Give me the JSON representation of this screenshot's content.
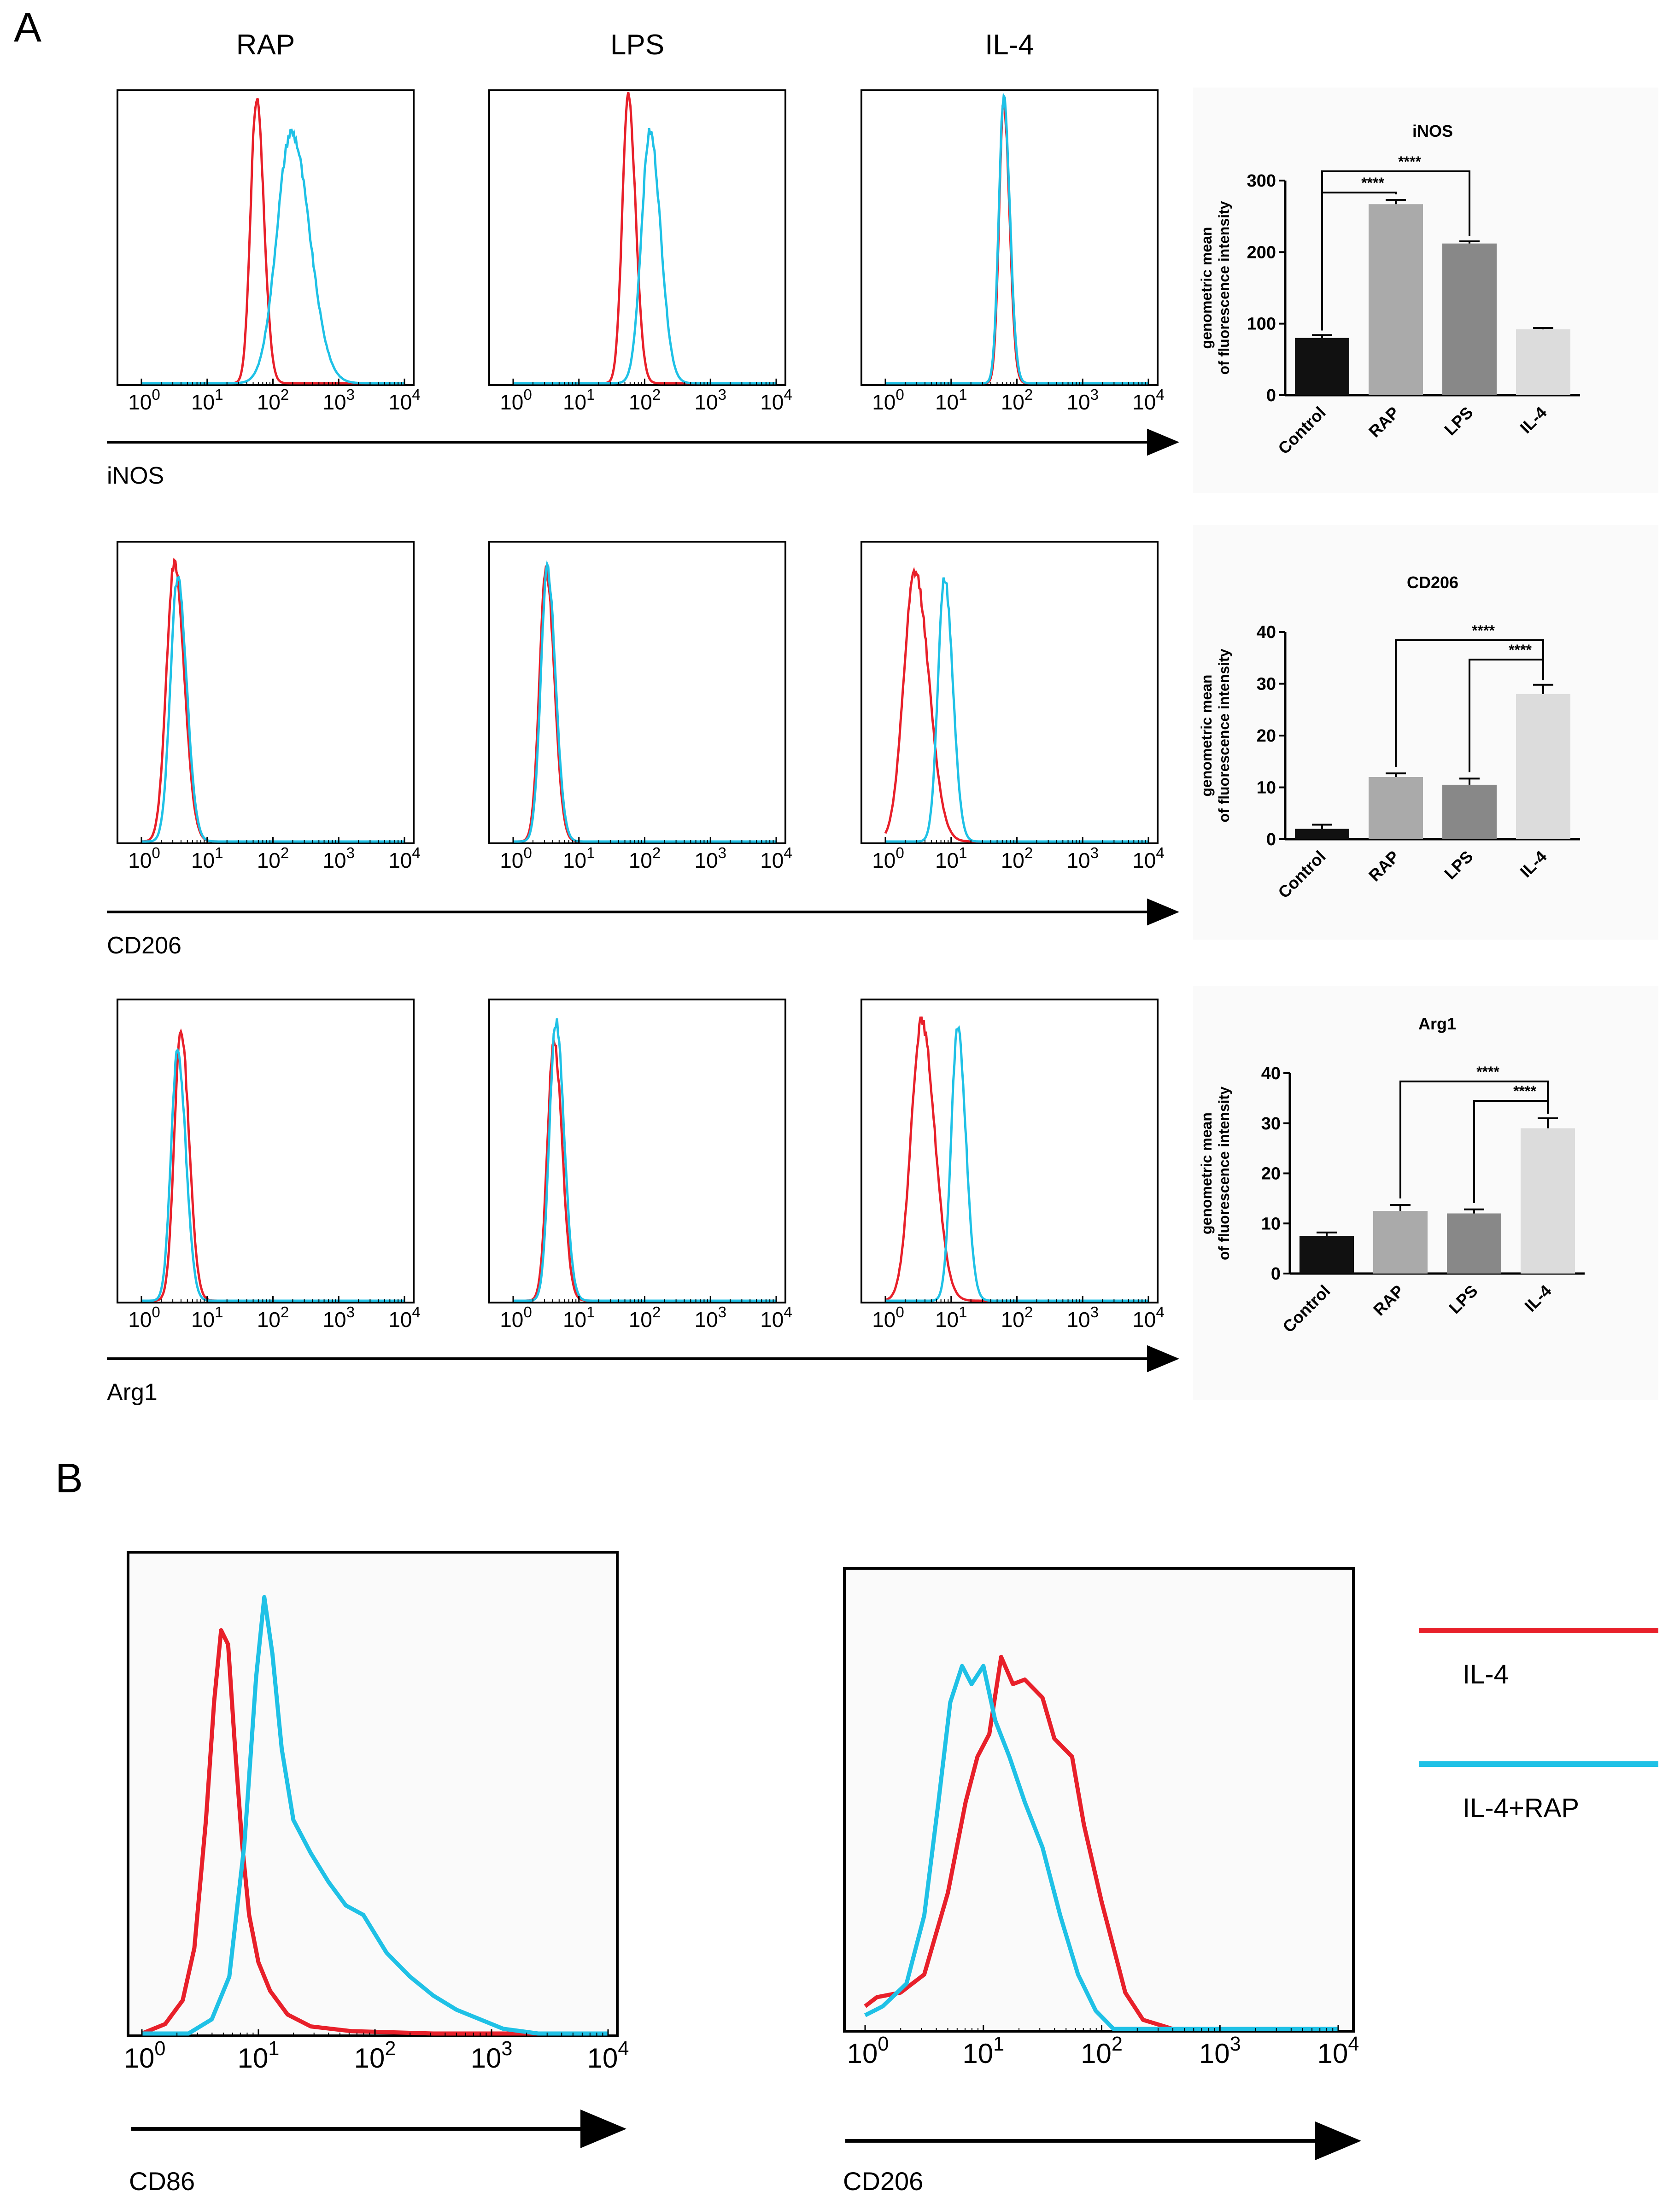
{
  "colors": {
    "red": "#e8202a",
    "cyan": "#1fc1e6",
    "bar_control": "#111111",
    "bar_rap": "#aaaaaa",
    "bar_lps": "#888888",
    "bar_il4": "#dcdcdc",
    "panel_bg": "#fafafa"
  },
  "panel_a": {
    "letter": "A",
    "conditions": [
      "RAP",
      "LPS",
      "IL-4"
    ],
    "rows": [
      {
        "marker": "iNOS",
        "histograms": [
          {
            "red": {
              "peak_log": 1.75,
              "width": 0.09,
              "height": 1.0
            },
            "cyan": {
              "peak_log": 2.28,
              "width": 0.22,
              "height": 0.88
            }
          },
          {
            "red": {
              "peak_log": 1.75,
              "width": 0.09,
              "height": 1.0
            },
            "cyan": {
              "peak_log": 2.08,
              "width": 0.13,
              "height": 0.88
            }
          },
          {
            "red": {
              "peak_log": 1.8,
              "width": 0.07,
              "height": 0.98
            },
            "cyan": {
              "peak_log": 1.8,
              "width": 0.075,
              "height": 1.0
            }
          }
        ]
      },
      {
        "marker": "CD206",
        "histograms": [
          {
            "red": {
              "peak_log": 0.5,
              "width": 0.12,
              "height": 0.95
            },
            "cyan": {
              "peak_log": 0.55,
              "width": 0.11,
              "height": 0.9
            }
          },
          {
            "red": {
              "peak_log": 0.5,
              "width": 0.1,
              "height": 0.93
            },
            "cyan": {
              "peak_log": 0.52,
              "width": 0.1,
              "height": 0.93
            }
          },
          {
            "red": {
              "peak_log": 0.45,
              "width": 0.17,
              "height": 0.92
            },
            "cyan": {
              "peak_log": 0.9,
              "width": 0.1,
              "height": 0.9
            }
          }
        ]
      },
      {
        "marker": "Arg1",
        "histograms": [
          {
            "red": {
              "peak_log": 0.6,
              "width": 0.1,
              "height": 0.92
            },
            "cyan": {
              "peak_log": 0.55,
              "width": 0.1,
              "height": 0.85
            }
          },
          {
            "red": {
              "peak_log": 0.62,
              "width": 0.1,
              "height": 0.88
            },
            "cyan": {
              "peak_log": 0.65,
              "width": 0.1,
              "height": 0.95
            }
          },
          {
            "red": {
              "peak_log": 0.55,
              "width": 0.16,
              "height": 0.95
            },
            "cyan": {
              "peak_log": 1.1,
              "width": 0.1,
              "height": 0.92
            }
          }
        ]
      }
    ],
    "hist_tick_exponents": [
      "0",
      "1",
      "2",
      "3",
      "4"
    ]
  },
  "chart_data": [
    {
      "type": "bar",
      "title": "iNOS",
      "ylabel": "genometric mean of fluorescence intensity",
      "ylabel_lines": [
        "genometric mean",
        "of fluorescence intensity"
      ],
      "categories": [
        "Control",
        "RAP",
        "LPS",
        "IL-4"
      ],
      "values": [
        80,
        267,
        212,
        92
      ],
      "errors": [
        4,
        6,
        3,
        2
      ],
      "ylim": [
        0,
        300
      ],
      "yticks": [
        "0",
        "100",
        "200",
        "300"
      ],
      "significance": [
        {
          "from": "Control",
          "to": "RAP",
          "label": "****"
        },
        {
          "from": "Control",
          "to": "LPS",
          "label": "****"
        }
      ]
    },
    {
      "type": "bar",
      "title": "CD206",
      "ylabel": "genometric mean of fluorescence intensity",
      "ylabel_lines": [
        "genometric mean",
        "of fluorescence intensity"
      ],
      "categories": [
        "Control",
        "RAP",
        "LPS",
        "IL-4"
      ],
      "values": [
        2,
        12,
        10.5,
        28
      ],
      "errors": [
        0.8,
        0.7,
        1.2,
        1.8
      ],
      "ylim": [
        0,
        40
      ],
      "yticks": [
        "0",
        "10",
        "20",
        "30",
        "40"
      ],
      "significance": [
        {
          "from": "RAP",
          "to": "IL-4",
          "label": "****"
        },
        {
          "from": "LPS",
          "to": "IL-4",
          "label": "****"
        }
      ]
    },
    {
      "type": "bar",
      "title": "Arg1",
      "ylabel": "genometric mean of fluorescence intensity",
      "ylabel_lines": [
        "genometric mean",
        "of fluorescence intensity"
      ],
      "categories": [
        "Control",
        "RAP",
        "LPS",
        "IL-4"
      ],
      "values": [
        7.5,
        12.5,
        12,
        29
      ],
      "errors": [
        0.7,
        1.2,
        0.8,
        2
      ],
      "ylim": [
        0,
        40
      ],
      "yticks": [
        "0",
        "10",
        "20",
        "30",
        "40"
      ],
      "significance": [
        {
          "from": "RAP",
          "to": "IL-4",
          "label": "****"
        },
        {
          "from": "LPS",
          "to": "IL-4",
          "label": "****"
        }
      ]
    }
  ],
  "panel_b": {
    "letter": "B",
    "tick_exponents": [
      "0",
      "1",
      "2",
      "3",
      "4"
    ],
    "plots": [
      {
        "marker": "CD86",
        "red": [
          [
            0.0,
            0.0
          ],
          [
            0.2,
            0.02
          ],
          [
            0.35,
            0.07
          ],
          [
            0.45,
            0.18
          ],
          [
            0.55,
            0.45
          ],
          [
            0.62,
            0.7
          ],
          [
            0.68,
            0.85
          ],
          [
            0.74,
            0.82
          ],
          [
            0.8,
            0.6
          ],
          [
            0.86,
            0.4
          ],
          [
            0.92,
            0.25
          ],
          [
            1.0,
            0.15
          ],
          [
            1.1,
            0.09
          ],
          [
            1.25,
            0.04
          ],
          [
            1.45,
            0.015
          ],
          [
            1.8,
            0.005
          ],
          [
            2.5,
            0.0
          ],
          [
            4.0,
            0.0
          ]
        ],
        "cyan": [
          [
            0.0,
            0.0
          ],
          [
            0.4,
            0.0
          ],
          [
            0.6,
            0.03
          ],
          [
            0.75,
            0.12
          ],
          [
            0.88,
            0.4
          ],
          [
            0.98,
            0.75
          ],
          [
            1.05,
            0.92
          ],
          [
            1.12,
            0.8
          ],
          [
            1.2,
            0.6
          ],
          [
            1.3,
            0.45
          ],
          [
            1.45,
            0.38
          ],
          [
            1.6,
            0.32
          ],
          [
            1.75,
            0.27
          ],
          [
            1.9,
            0.25
          ],
          [
            2.1,
            0.17
          ],
          [
            2.3,
            0.12
          ],
          [
            2.5,
            0.08
          ],
          [
            2.7,
            0.05
          ],
          [
            2.9,
            0.03
          ],
          [
            3.1,
            0.01
          ],
          [
            3.4,
            0.0
          ],
          [
            4.0,
            0.0
          ]
        ]
      },
      {
        "marker": "CD206",
        "red": [
          [
            0.0,
            0.05
          ],
          [
            0.1,
            0.07
          ],
          [
            0.3,
            0.08
          ],
          [
            0.5,
            0.12
          ],
          [
            0.7,
            0.3
          ],
          [
            0.85,
            0.5
          ],
          [
            0.95,
            0.6
          ],
          [
            1.05,
            0.65
          ],
          [
            1.15,
            0.82
          ],
          [
            1.25,
            0.76
          ],
          [
            1.35,
            0.77
          ],
          [
            1.5,
            0.73
          ],
          [
            1.6,
            0.64
          ],
          [
            1.75,
            0.6
          ],
          [
            1.85,
            0.45
          ],
          [
            2.0,
            0.28
          ],
          [
            2.1,
            0.18
          ],
          [
            2.2,
            0.08
          ],
          [
            2.35,
            0.02
          ],
          [
            2.6,
            0.0
          ],
          [
            4.0,
            0.0
          ]
        ],
        "cyan": [
          [
            0.0,
            0.03
          ],
          [
            0.15,
            0.05
          ],
          [
            0.35,
            0.1
          ],
          [
            0.5,
            0.25
          ],
          [
            0.62,
            0.5
          ],
          [
            0.72,
            0.72
          ],
          [
            0.82,
            0.8
          ],
          [
            0.9,
            0.76
          ],
          [
            1.0,
            0.8
          ],
          [
            1.1,
            0.68
          ],
          [
            1.22,
            0.6
          ],
          [
            1.35,
            0.5
          ],
          [
            1.5,
            0.4
          ],
          [
            1.65,
            0.25
          ],
          [
            1.8,
            0.12
          ],
          [
            1.95,
            0.04
          ],
          [
            2.1,
            0.0
          ],
          [
            4.0,
            0.0
          ]
        ]
      }
    ],
    "legend": [
      {
        "label": "IL-4",
        "color": "red"
      },
      {
        "label": "IL-4+RAP",
        "color": "cyan"
      }
    ]
  }
}
